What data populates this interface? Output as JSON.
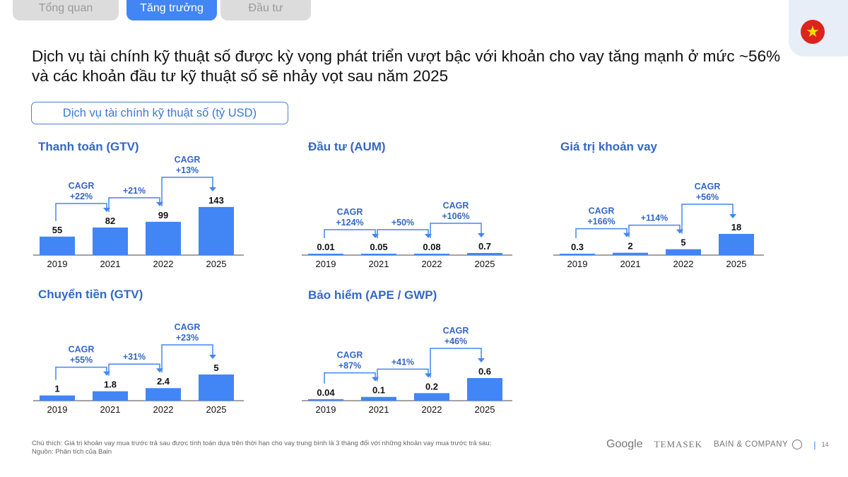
{
  "tabs": [
    {
      "label": "Tổng quan"
    },
    {
      "label": "Tăng trưởng"
    },
    {
      "label": "Đầu tư"
    }
  ],
  "title": "Dịch vụ tài chính kỹ thuật số được kỳ vọng phát triển vượt bậc với khoản cho vay tăng mạnh ở mức ~56% và các khoản đầu tư kỹ thuật số sẽ nhảy vọt sau năm 2025",
  "section_label": "Dịch vụ tài chính kỹ thuật số  (tỷ USD)",
  "colors": {
    "bar": "#4285f4",
    "accent": "#3367c7",
    "flag_red": "#da251d",
    "flag_star": "#ffde00"
  },
  "chart_data": [
    {
      "type": "bar",
      "title": "Thanh toán (GTV)",
      "categories": [
        "2019",
        "2021",
        "2022",
        "2025"
      ],
      "values": [
        55,
        82,
        99,
        143
      ],
      "value_labels": [
        "55",
        "82",
        "99",
        "143"
      ],
      "ylim": [
        0,
        168
      ],
      "growth": [
        {
          "top": "CAGR",
          "label": "+22%"
        },
        {
          "top": "",
          "label": "+21%"
        },
        {
          "top": "CAGR",
          "label": "+13%"
        }
      ]
    },
    {
      "type": "bar",
      "title": "Đầu tư (AUM)",
      "categories": [
        "2019",
        "2021",
        "2022",
        "2025"
      ],
      "values": [
        0.01,
        0.05,
        0.08,
        0.7
      ],
      "value_labels": [
        "0.01",
        "0.05",
        "0.08",
        "0.7"
      ],
      "ylim": [
        0,
        18.7
      ],
      "growth": [
        {
          "top": "CAGR",
          "label": "+124%"
        },
        {
          "top": "",
          "label": "+50%"
        },
        {
          "top": "CAGR",
          "label": "+106%"
        }
      ]
    },
    {
      "type": "bar",
      "title": "Giá trị khoản vay",
      "categories": [
        "2019",
        "2021",
        "2022",
        "2025"
      ],
      "values": [
        0.3,
        2,
        5,
        18
      ],
      "value_labels": [
        "0.3",
        "2",
        "5",
        "18"
      ],
      "ylim": [
        0,
        48
      ],
      "growth": [
        {
          "top": "CAGR",
          "label": "+166%"
        },
        {
          "top": "",
          "label": "+114%"
        },
        {
          "top": "CAGR",
          "label": "+56%"
        }
      ]
    },
    {
      "type": "bar",
      "title": "Chuyển tiền (GTV)",
      "categories": [
        "2019",
        "2021",
        "2022",
        "2025"
      ],
      "values": [
        1,
        1.8,
        2.4,
        5
      ],
      "value_labels": [
        "1",
        "1.8",
        "2.4",
        "5"
      ],
      "ylim": [
        0,
        10.8
      ],
      "growth": [
        {
          "top": "CAGR",
          "label": "+55%"
        },
        {
          "top": "",
          "label": "+31%"
        },
        {
          "top": "CAGR",
          "label": "+23%"
        }
      ]
    },
    {
      "type": "bar",
      "title": "Bảo hiểm (APE / GWP)",
      "categories": [
        "2019",
        "2021",
        "2022",
        "2025"
      ],
      "values": [
        0.04,
        0.1,
        0.2,
        0.6
      ],
      "value_labels": [
        "0.04",
        "0.1",
        "0.2",
        "0.6"
      ],
      "ylim": [
        0,
        1.5
      ],
      "growth": [
        {
          "top": "CAGR",
          "label": "+87%"
        },
        {
          "top": "",
          "label": "+41%"
        },
        {
          "top": "CAGR",
          "label": "+46%"
        }
      ]
    }
  ],
  "footer": {
    "note": "Chú thích: Giá trị khoản vay mua trước trả sau được tính toán dựa trên thời hạn cho vay trung bình là 3 tháng đối với những khoản vay mua trước trả sau;",
    "source": "Nguồn: Phân tích của Bain",
    "page": "14"
  },
  "logos": {
    "google": "Google",
    "temasek": "TEMASEK",
    "bain": "BAIN & COMPANY"
  }
}
